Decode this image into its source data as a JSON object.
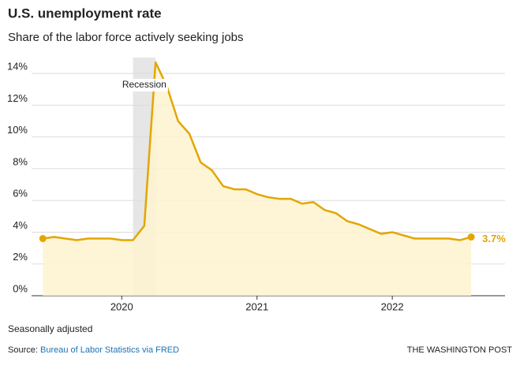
{
  "chart_data": {
    "type": "line",
    "title": "U.S. unemployment rate",
    "subtitle": "Share of the labor force actively seeking jobs",
    "x": [
      "2019-06",
      "2019-07",
      "2019-08",
      "2019-09",
      "2019-10",
      "2019-11",
      "2019-12",
      "2020-01",
      "2020-02",
      "2020-03",
      "2020-04",
      "2020-05",
      "2020-06",
      "2020-07",
      "2020-08",
      "2020-09",
      "2020-10",
      "2020-11",
      "2020-12",
      "2021-01",
      "2021-02",
      "2021-03",
      "2021-04",
      "2021-05",
      "2021-06",
      "2021-07",
      "2021-08",
      "2021-09",
      "2021-10",
      "2021-11",
      "2021-12",
      "2022-01",
      "2022-02",
      "2022-03",
      "2022-04",
      "2022-05",
      "2022-06",
      "2022-07",
      "2022-08"
    ],
    "values": [
      3.6,
      3.7,
      3.6,
      3.5,
      3.6,
      3.6,
      3.6,
      3.5,
      3.5,
      4.4,
      14.7,
      13.2,
      11.0,
      10.2,
      8.4,
      7.9,
      6.9,
      6.7,
      6.7,
      6.4,
      6.2,
      6.1,
      6.1,
      5.8,
      5.9,
      5.4,
      5.2,
      4.7,
      4.5,
      4.2,
      3.9,
      4.0,
      3.8,
      3.6,
      3.6,
      3.6,
      3.6,
      3.5,
      3.7
    ],
    "value_labels": [
      null,
      null,
      null,
      null,
      null,
      null,
      null,
      null,
      null,
      null,
      null,
      null,
      null,
      null,
      null,
      null,
      null,
      null,
      null,
      null,
      null,
      null,
      null,
      null,
      null,
      null,
      null,
      null,
      null,
      null,
      null,
      null,
      null,
      null,
      null,
      null,
      null,
      null,
      "3.7%"
    ],
    "color": "#e3a600",
    "fill_color": "#fdf3cf",
    "xlim": [
      "2019-05",
      "2022-11"
    ],
    "xticks": [
      {
        "value": "2020-01",
        "label": "2020"
      },
      {
        "value": "2021-01",
        "label": "2021"
      },
      {
        "value": "2022-01",
        "label": "2022"
      }
    ],
    "ylim": [
      0,
      15
    ],
    "yticks": [
      {
        "value": 0,
        "label": "0%"
      },
      {
        "value": 2,
        "label": "2%"
      },
      {
        "value": 4,
        "label": "4%"
      },
      {
        "value": 6,
        "label": "6%"
      },
      {
        "value": 8,
        "label": "8%"
      },
      {
        "value": 10,
        "label": "10%"
      },
      {
        "value": 12,
        "label": "12%"
      },
      {
        "value": 14,
        "label": "14%"
      }
    ],
    "grid": true,
    "annotations": [
      {
        "text": "Recession",
        "start": "2020-02",
        "end": "2020-04"
      }
    ],
    "note": "Seasonally adjusted",
    "source_prefix": "Source:",
    "source_link": "Bureau of Labor Statistics via FRED",
    "credit": "THE WASHINGTON POST"
  }
}
